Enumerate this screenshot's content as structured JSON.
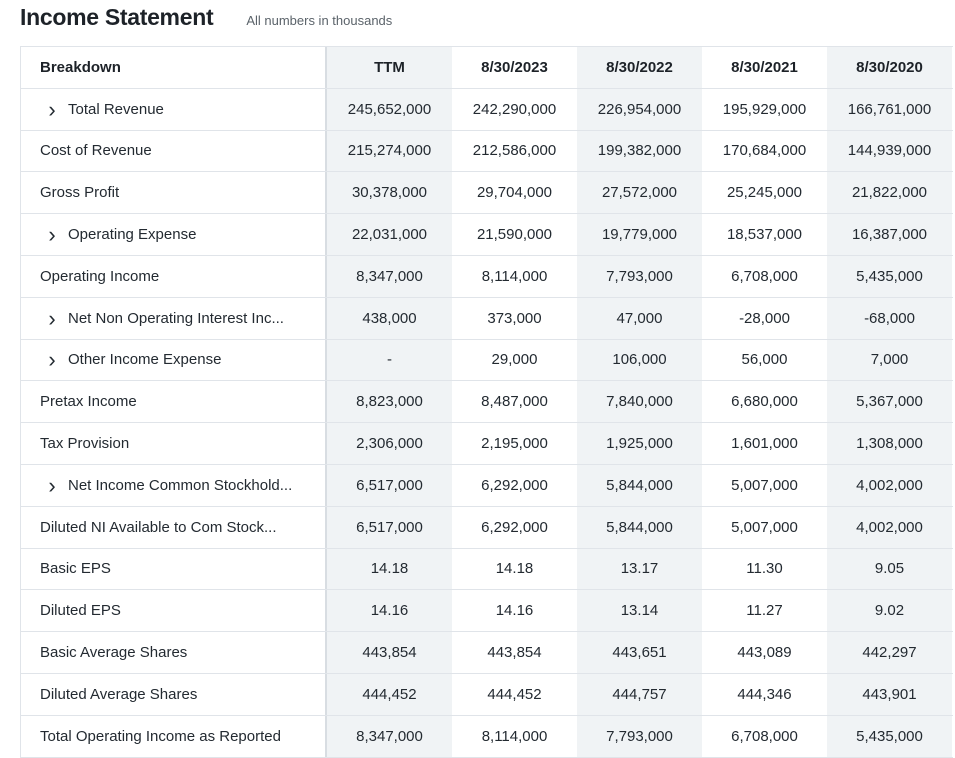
{
  "header": {
    "title": "Income Statement",
    "subtitle": "All numbers in thousands"
  },
  "columns": [
    "Breakdown",
    "TTM",
    "8/30/2023",
    "8/30/2022",
    "8/30/2021",
    "8/30/2020"
  ],
  "rows": [
    {
      "label": "Total Revenue",
      "expandable": true,
      "values": [
        "245,652,000",
        "242,290,000",
        "226,954,000",
        "195,929,000",
        "166,761,000"
      ]
    },
    {
      "label": "Cost of Revenue",
      "expandable": false,
      "values": [
        "215,274,000",
        "212,586,000",
        "199,382,000",
        "170,684,000",
        "144,939,000"
      ]
    },
    {
      "label": "Gross Profit",
      "expandable": false,
      "values": [
        "30,378,000",
        "29,704,000",
        "27,572,000",
        "25,245,000",
        "21,822,000"
      ]
    },
    {
      "label": "Operating Expense",
      "expandable": true,
      "values": [
        "22,031,000",
        "21,590,000",
        "19,779,000",
        "18,537,000",
        "16,387,000"
      ]
    },
    {
      "label": "Operating Income",
      "expandable": false,
      "values": [
        "8,347,000",
        "8,114,000",
        "7,793,000",
        "6,708,000",
        "5,435,000"
      ]
    },
    {
      "label": "Net Non Operating Interest Inc...",
      "expandable": true,
      "values": [
        "438,000",
        "373,000",
        "47,000",
        "-28,000",
        "-68,000"
      ]
    },
    {
      "label": "Other Income Expense",
      "expandable": true,
      "values": [
        "-",
        "29,000",
        "106,000",
        "56,000",
        "7,000"
      ]
    },
    {
      "label": "Pretax Income",
      "expandable": false,
      "values": [
        "8,823,000",
        "8,487,000",
        "7,840,000",
        "6,680,000",
        "5,367,000"
      ]
    },
    {
      "label": "Tax Provision",
      "expandable": false,
      "values": [
        "2,306,000",
        "2,195,000",
        "1,925,000",
        "1,601,000",
        "1,308,000"
      ]
    },
    {
      "label": "Net Income Common Stockhold...",
      "expandable": true,
      "values": [
        "6,517,000",
        "6,292,000",
        "5,844,000",
        "5,007,000",
        "4,002,000"
      ]
    },
    {
      "label": "Diluted NI Available to Com Stock...",
      "expandable": false,
      "values": [
        "6,517,000",
        "6,292,000",
        "5,844,000",
        "5,007,000",
        "4,002,000"
      ]
    },
    {
      "label": "Basic EPS",
      "expandable": false,
      "values": [
        "14.18",
        "14.18",
        "13.17",
        "11.30",
        "9.05"
      ]
    },
    {
      "label": "Diluted EPS",
      "expandable": false,
      "values": [
        "14.16",
        "14.16",
        "13.14",
        "11.27",
        "9.02"
      ]
    },
    {
      "label": "Basic Average Shares",
      "expandable": false,
      "values": [
        "443,854",
        "443,854",
        "443,651",
        "443,089",
        "442,297"
      ]
    },
    {
      "label": "Diluted Average Shares",
      "expandable": false,
      "values": [
        "444,452",
        "444,452",
        "444,757",
        "444,346",
        "443,901"
      ]
    },
    {
      "label": "Total Operating Income as Reported",
      "expandable": false,
      "values": [
        "8,347,000",
        "8,114,000",
        "7,793,000",
        "6,708,000",
        "5,435,000"
      ]
    }
  ],
  "icons": {
    "expand": "chevron-right-icon"
  },
  "colors": {
    "shade": "#f0f3f5",
    "border": "#e0e4e9",
    "text": "#232a31"
  }
}
